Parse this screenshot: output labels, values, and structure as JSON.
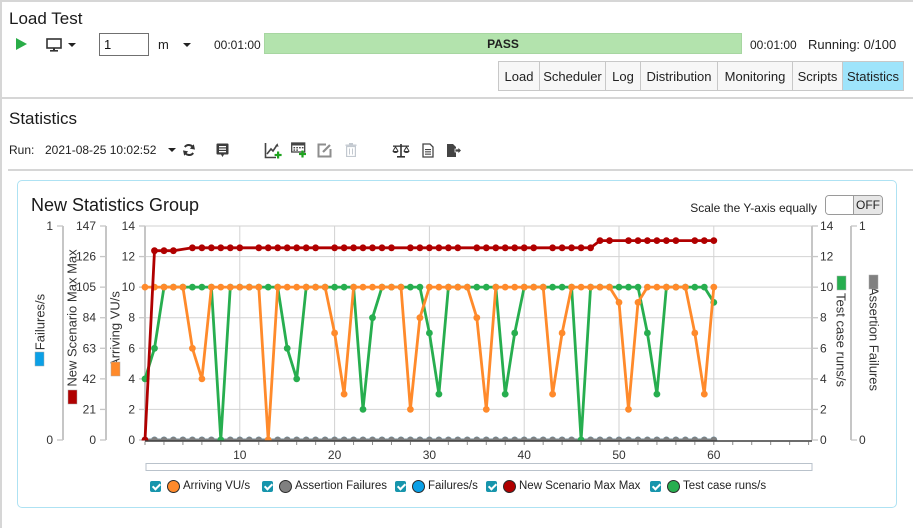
{
  "app": {
    "title": "Load Test"
  },
  "controls": {
    "play_icon": "play-icon",
    "monitor_icon": "monitor-icon",
    "duration_value": "1",
    "duration_unit": "m",
    "elapsed_time": "00:01:00",
    "progress_status": "PASS",
    "progress_percent": 100,
    "progress_color": "#b3e3ad",
    "total_time": "00:01:00",
    "running": "Running: 0/100"
  },
  "tabs": [
    {
      "label": "Load",
      "active": false
    },
    {
      "label": "Scheduler",
      "active": false
    },
    {
      "label": "Log",
      "active": false
    },
    {
      "label": "Distribution",
      "active": false
    },
    {
      "label": "Monitoring",
      "active": false
    },
    {
      "label": "Scripts",
      "active": false
    },
    {
      "label": "Statistics",
      "active": true
    }
  ],
  "tab_active_color": "#9ee4fb",
  "statistics": {
    "heading": "Statistics",
    "run_label": "Run:",
    "run_value": "2021-08-25 10:02:52",
    "toolbar": [
      {
        "icon": "refresh-icon",
        "enabled": true
      },
      {
        "icon": "comment-icon",
        "enabled": true
      },
      {
        "icon": "add-chart-icon",
        "enabled": true
      },
      {
        "icon": "add-table-icon",
        "enabled": true
      },
      {
        "icon": "edit-icon",
        "enabled": false
      },
      {
        "icon": "delete-icon",
        "enabled": false
      },
      {
        "icon": "compare-icon",
        "enabled": true
      },
      {
        "icon": "report-icon",
        "enabled": true
      },
      {
        "icon": "export-icon",
        "enabled": true
      }
    ]
  },
  "group": {
    "title": "New Statistics Group",
    "scale_label": "Scale the Y-axis equally",
    "scale_toggle": "OFF",
    "border_color": "#aee2f3"
  },
  "legend": {
    "checkbox_color": "#1795ac",
    "items": [
      {
        "label": "Arriving VU/s",
        "color": "#ff8a2b",
        "checked": true
      },
      {
        "label": "Assertion Failures",
        "color": "#808080",
        "checked": true
      },
      {
        "label": "Failures/s",
        "color": "#0ba0e6",
        "checked": true
      },
      {
        "label": "New Scenario Max Max",
        "color": "#b00000",
        "checked": true
      },
      {
        "label": "Test case runs/s",
        "color": "#27ae4f",
        "checked": true
      }
    ]
  },
  "chart_data": {
    "type": "line",
    "title": "New Statistics Group",
    "xlabel": "",
    "x": [
      0,
      1,
      2,
      3,
      4,
      5,
      6,
      7,
      8,
      9,
      10,
      11,
      12,
      13,
      14,
      15,
      16,
      17,
      18,
      19,
      20,
      21,
      22,
      23,
      24,
      25,
      26,
      27,
      28,
      29,
      30,
      31,
      32,
      33,
      34,
      35,
      36,
      37,
      38,
      39,
      40,
      41,
      42,
      43,
      44,
      45,
      46,
      47,
      48,
      49,
      50,
      51,
      52,
      53,
      54,
      55,
      56,
      57,
      58,
      59,
      60
    ],
    "xlim": [
      0,
      70
    ],
    "xticks": [
      10,
      20,
      30,
      40,
      50,
      60
    ],
    "grid": true,
    "legend_position": "bottom",
    "axes": [
      {
        "id": "left-outer",
        "title": "Failures/s",
        "ylim": [
          0,
          1
        ],
        "ticks": [
          0,
          1
        ],
        "color": "#0ba0e6"
      },
      {
        "id": "left-middle",
        "title": "New Scenario Max Max",
        "ylim": [
          0,
          147
        ],
        "ticks": [
          0,
          21,
          42,
          63,
          84,
          105,
          126,
          147
        ],
        "color": "#b00000"
      },
      {
        "id": "left-inner",
        "title": "Arriving VU/s",
        "ylim": [
          0,
          14
        ],
        "ticks": [
          0,
          2,
          4,
          6,
          8,
          10,
          12,
          14
        ],
        "color": "#ff8a2b"
      },
      {
        "id": "right-inner",
        "title": "Test case runs/s",
        "ylim": [
          0,
          14
        ],
        "ticks": [
          0,
          2,
          4,
          6,
          8,
          10,
          12,
          14
        ],
        "color": "#27ae4f"
      },
      {
        "id": "right-outer",
        "title": "Assertion Failures",
        "ylim": [
          0,
          1
        ],
        "ticks": [
          0,
          1
        ],
        "color": "#808080"
      }
    ],
    "series": [
      {
        "name": "Arriving VU/s",
        "axis": "left-inner",
        "color": "#ff8a2b",
        "values": [
          10,
          10,
          10,
          10,
          10,
          6,
          4,
          10,
          10,
          10,
          10,
          10,
          10,
          0,
          10,
          10,
          10,
          10,
          10,
          10,
          7,
          3,
          10,
          10,
          10,
          10,
          10,
          10,
          2,
          8,
          10,
          10,
          10,
          10,
          10,
          8,
          2,
          10,
          10,
          10,
          10,
          10,
          10,
          3,
          7,
          10,
          10,
          10,
          10,
          10,
          9,
          2,
          9,
          10,
          10,
          10,
          10,
          10,
          7,
          3,
          10
        ]
      },
      {
        "name": "Assertion Failures",
        "axis": "right-outer",
        "color": "#808080",
        "values": [
          0,
          0,
          0,
          0,
          0,
          0,
          0,
          0,
          0,
          0,
          0,
          0,
          0,
          0,
          0,
          0,
          0,
          0,
          0,
          0,
          0,
          0,
          0,
          0,
          0,
          0,
          0,
          0,
          0,
          0,
          0,
          0,
          0,
          0,
          0,
          0,
          0,
          0,
          0,
          0,
          0,
          0,
          0,
          0,
          0,
          0,
          0,
          0,
          0,
          0,
          0,
          0,
          0,
          0,
          0,
          0,
          0,
          0,
          0,
          0,
          0
        ]
      },
      {
        "name": "Failures/s",
        "axis": "left-outer",
        "color": "#0ba0e6",
        "values": [
          0,
          0,
          0,
          0,
          0,
          0,
          0,
          0,
          0,
          0,
          0,
          0,
          0,
          0,
          0,
          0,
          0,
          0,
          0,
          0,
          0,
          0,
          0,
          0,
          0,
          0,
          0,
          0,
          0,
          0,
          0,
          0,
          0,
          0,
          0,
          0,
          0,
          0,
          0,
          0,
          0,
          0,
          0,
          0,
          0,
          0,
          0,
          0,
          0,
          0,
          0,
          0,
          0,
          0,
          0,
          0,
          0,
          0,
          0,
          0,
          0
        ]
      },
      {
        "name": "New Scenario Max Max",
        "axis": "left-middle",
        "color": "#b00000",
        "values": [
          0,
          130,
          130,
          130,
          null,
          132,
          132,
          132,
          132,
          132,
          132,
          null,
          132,
          132,
          132,
          132,
          132,
          132,
          132,
          null,
          132,
          132,
          132,
          132,
          132,
          132,
          132,
          null,
          132,
          132,
          132,
          132,
          132,
          132,
          null,
          132,
          132,
          132,
          132,
          132,
          132,
          132,
          null,
          132,
          132,
          132,
          132,
          132,
          137,
          137,
          null,
          137,
          137,
          137,
          137,
          137,
          137,
          null,
          137,
          137,
          137
        ]
      },
      {
        "name": "Test case runs/s",
        "axis": "right-inner",
        "color": "#27ae4f",
        "values": [
          4,
          6,
          10,
          10,
          10,
          10,
          10,
          10,
          0,
          10,
          10,
          10,
          10,
          10,
          10,
          6,
          4,
          10,
          10,
          10,
          10,
          10,
          10,
          2,
          8,
          10,
          10,
          10,
          10,
          10,
          7,
          3,
          10,
          10,
          10,
          10,
          10,
          10,
          3,
          7,
          10,
          10,
          10,
          10,
          10,
          10,
          0,
          10,
          10,
          10,
          10,
          10,
          10,
          7,
          3,
          10,
          10,
          10,
          10,
          10,
          9
        ]
      }
    ]
  }
}
